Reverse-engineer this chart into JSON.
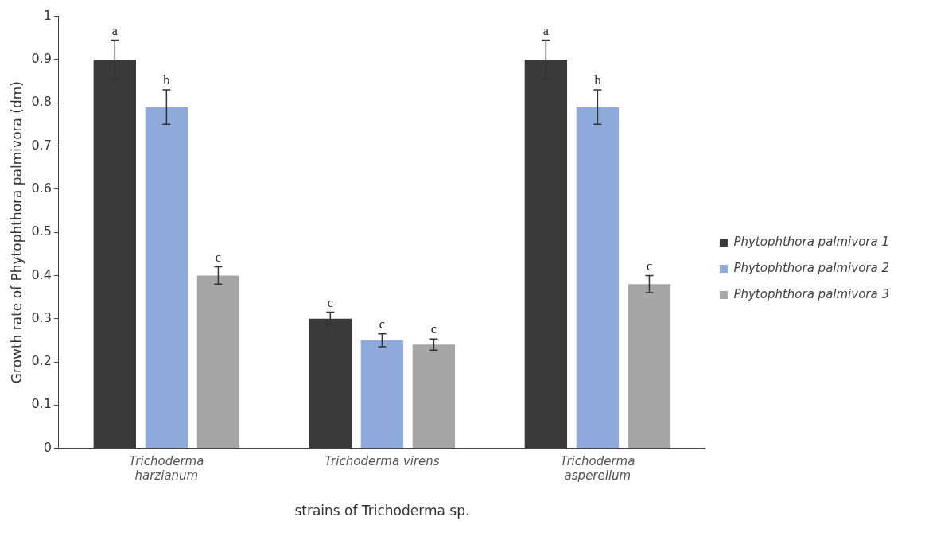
{
  "chart_data": {
    "type": "bar",
    "xlabel": "strains of Trichoderma sp.",
    "ylabel": "Growth rate of Phytophthora palmivora (dm)",
    "categories": [
      "Trichoderma harzianum",
      "Trichoderma virens",
      "Trichoderma asperellum"
    ],
    "series": [
      {
        "name": "Phytophthora palmivora 1",
        "color": "#3a3a3a",
        "values": [
          0.9,
          0.3,
          0.9
        ],
        "errors": [
          0.045,
          0.015,
          0.045
        ],
        "value_labels": [
          "a",
          "c",
          "a"
        ]
      },
      {
        "name": "Phytophthora palmivora 2",
        "color": "#8eaadb",
        "values": [
          0.79,
          0.25,
          0.79
        ],
        "errors": [
          0.04,
          0.015,
          0.04
        ],
        "value_labels": [
          "b",
          "c",
          "b"
        ]
      },
      {
        "name": "Phytophthora palmivora 3",
        "color": "#a6a6a6",
        "values": [
          0.4,
          0.24,
          0.38
        ],
        "errors": [
          0.02,
          0.013,
          0.02
        ],
        "value_labels": [
          "c",
          "c",
          "c"
        ]
      }
    ],
    "ylim": [
      0,
      1
    ],
    "yticks": [
      0,
      0.1,
      0.2,
      0.3,
      0.4,
      0.5,
      0.6,
      0.7,
      0.8,
      0.9,
      1
    ],
    "grid": false,
    "legend": "right"
  }
}
